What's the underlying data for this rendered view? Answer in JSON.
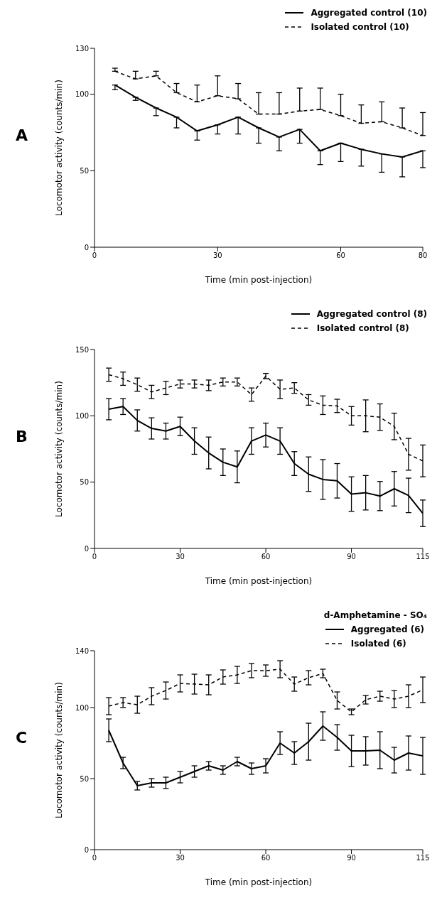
{
  "chart_data": [
    {
      "type": "line",
      "annotations": [
        "A"
      ],
      "xlabel": "Time (min post-injection)",
      "ylabel": "Locomotor activity (counts/min)",
      "x": [
        5,
        10,
        15,
        20,
        25,
        30,
        35,
        40,
        45,
        50,
        55,
        60,
        65,
        70,
        75,
        80
      ],
      "xlim": [
        0,
        80
      ],
      "xticks": [
        0,
        30,
        60,
        80
      ],
      "ylim": [
        0,
        130
      ],
      "yticks": [
        0,
        50,
        100,
        130
      ],
      "legend": "top right",
      "marker": "none",
      "grid": false,
      "series": [
        {
          "name": "Aggregated control (10)",
          "color": "#000000",
          "line_style": "solid",
          "values": [
            106,
            98,
            91,
            85,
            76,
            80,
            85,
            78,
            72,
            77,
            63,
            68,
            64,
            61,
            59,
            63
          ],
          "errors": [
            [
              103,
              106
            ],
            [
              96,
              98
            ],
            [
              86,
              91
            ],
            [
              78,
              85
            ],
            [
              70,
              76
            ],
            [
              74,
              80
            ],
            [
              74,
              85
            ],
            [
              68,
              78
            ],
            [
              63,
              72
            ],
            [
              68,
              77
            ],
            [
              54,
              63
            ],
            [
              56,
              68
            ],
            [
              53,
              64
            ],
            [
              49,
              61
            ],
            [
              46,
              59
            ],
            [
              52,
              63
            ]
          ]
        },
        {
          "name": "Isolated control (10)",
          "color": "#000000",
          "line_style": "dashed",
          "values": [
            115,
            110,
            112,
            101,
            95,
            99,
            97,
            87,
            87,
            89,
            90,
            86,
            81,
            82,
            78,
            73
          ],
          "errors": [
            [
              115,
              117
            ],
            [
              110,
              115
            ],
            [
              112,
              115
            ],
            [
              101,
              107
            ],
            [
              95,
              106
            ],
            [
              99,
              112
            ],
            [
              97,
              107
            ],
            [
              87,
              101
            ],
            [
              87,
              101
            ],
            [
              89,
              104
            ],
            [
              90,
              104
            ],
            [
              86,
              100
            ],
            [
              81,
              93
            ],
            [
              82,
              95
            ],
            [
              78,
              91
            ],
            [
              73,
              88
            ]
          ]
        }
      ]
    },
    {
      "type": "line",
      "annotations": [
        "B"
      ],
      "xlabel": "Time (min post-injection)",
      "ylabel": "Locomotor activity (counts/min)",
      "x": [
        5,
        10,
        15,
        20,
        25,
        30,
        35,
        40,
        45,
        50,
        55,
        60,
        65,
        70,
        75,
        80,
        85,
        90,
        95,
        100,
        105,
        110,
        115
      ],
      "xlim": [
        0,
        115
      ],
      "xticks": [
        0,
        30,
        60,
        90,
        115
      ],
      "ylim": [
        0,
        150
      ],
      "yticks": [
        0,
        50,
        100,
        150
      ],
      "legend": "top right",
      "marker": "none",
      "grid": false,
      "series": [
        {
          "name": "Aggregated control (8)",
          "color": "#000000",
          "line_style": "solid",
          "values": [
            105,
            107,
            96.5,
            90.5,
            88.5,
            92,
            81,
            72,
            65,
            61.5,
            81,
            85.5,
            81,
            64,
            56,
            52,
            51,
            41,
            42,
            39.5,
            45,
            40,
            26.5
          ],
          "errors": [
            8,
            6,
            8,
            8,
            6,
            7,
            10,
            12,
            10,
            12,
            10,
            9,
            10,
            9,
            13,
            15,
            13,
            13,
            13,
            11,
            13,
            13,
            10
          ]
        },
        {
          "name": "Isolated control (8)",
          "color": "#000000",
          "line_style": "dashed",
          "values": [
            131,
            128,
            123.5,
            118,
            121,
            124,
            124,
            123,
            125.5,
            125.5,
            116,
            130,
            120,
            121,
            112,
            108,
            107.5,
            100,
            100,
            99,
            92,
            71,
            66
          ],
          "errors": [
            5,
            5,
            5,
            5,
            5,
            3,
            3,
            4,
            3,
            3,
            5,
            2,
            7,
            4,
            4,
            7,
            5,
            7,
            12,
            10,
            10,
            12,
            12
          ]
        }
      ]
    },
    {
      "type": "line",
      "annotations": [
        "C"
      ],
      "legend_title": "d-Amphetamine - SO₄",
      "xlabel": "Time (min post-injection)",
      "ylabel": "Locomotor activity (counts/min)",
      "x": [
        5,
        10,
        15,
        20,
        25,
        30,
        35,
        40,
        45,
        50,
        55,
        60,
        65,
        70,
        75,
        80,
        85,
        90,
        95,
        100,
        105,
        110,
        115
      ],
      "xlim": [
        0,
        115
      ],
      "xticks": [
        0,
        30,
        60,
        90,
        115
      ],
      "ylim": [
        0,
        140
      ],
      "yticks": [
        0,
        50,
        100,
        140
      ],
      "legend": "top right",
      "marker": "none",
      "grid": false,
      "series": [
        {
          "name": "Aggregated (6)",
          "color": "#000000",
          "line_style": "solid",
          "values": [
            84,
            61,
            45,
            47,
            47,
            51,
            55,
            59,
            56,
            62,
            57,
            59,
            75,
            68,
            76,
            87,
            79,
            69.5,
            69.5,
            70,
            63,
            68,
            66
          ],
          "errors": [
            8,
            4,
            3,
            3,
            4,
            4,
            4,
            3,
            3,
            3,
            4,
            5,
            8,
            8,
            13,
            10,
            9,
            11,
            10,
            13,
            9,
            12,
            13
          ]
        },
        {
          "name": "Isolated (6)",
          "color": "#000000",
          "line_style": "dashed",
          "values": [
            101,
            103.5,
            102,
            108,
            112,
            117,
            116.5,
            116,
            121.5,
            123,
            126,
            126,
            127,
            116.5,
            121,
            124,
            105,
            97,
            105.5,
            108,
            106,
            108,
            112.5
          ],
          "errors": [
            6,
            3.5,
            6,
            6,
            6,
            6,
            7,
            7,
            5,
            6,
            5,
            4,
            6,
            5,
            5,
            3,
            6,
            2,
            3,
            3.5,
            6,
            8,
            9
          ]
        }
      ]
    }
  ]
}
